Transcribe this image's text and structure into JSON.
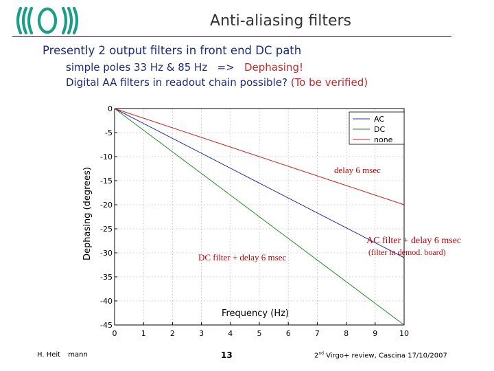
{
  "slide": {
    "title": "Anti-aliasing filters",
    "line1": "Presently 2 output filters in front end DC path",
    "line2_main": "simple poles 33 Hz & 85 Hz   =>   ",
    "line2_highlight": "Dephasing!",
    "line3_main": "Digital AA filters in readout chain possible? ",
    "line3_highlight": "(To be verified)",
    "footer_author_first": "H. Heit",
    "footer_author_last": "mann",
    "footer_page": "13",
    "footer_event_ordinal": "2",
    "footer_event_suffix": "nd",
    "footer_event_rest": " Virgo+ review, Cascina 17/10/2007"
  },
  "colors": {
    "logo": "#1a9e86",
    "title": "#333333",
    "rule": "#8a0f3a",
    "text": "#1a2a80",
    "highlight": "#c8262a",
    "series_ac": "#1f2fb0",
    "series_dc": "#1e8a1e",
    "series_none": "#d42020",
    "annotation": "#c00000"
  },
  "chart_data": {
    "type": "line",
    "xlabel": "Frequency (Hz)",
    "ylabel": "Dephasing (degrees)",
    "xlim": [
      0,
      10
    ],
    "ylim": [
      -45,
      0
    ],
    "xticks": [
      0,
      1,
      2,
      3,
      4,
      5,
      6,
      7,
      8,
      9,
      10
    ],
    "yticks": [
      0,
      -5,
      -10,
      -15,
      -20,
      -25,
      -30,
      -35,
      -40,
      -45
    ],
    "grid": true,
    "legend": "top-right",
    "series": [
      {
        "name": "AC",
        "x": [
          0,
          1,
          2,
          3,
          4,
          5,
          6,
          7,
          8,
          9,
          10
        ],
        "y": [
          0,
          -3.1,
          -6.2,
          -9.3,
          -12.4,
          -15.5,
          -18.6,
          -21.7,
          -24.8,
          -27.9,
          -31.0
        ]
      },
      {
        "name": "DC",
        "x": [
          0,
          1,
          2,
          3,
          4,
          5,
          6,
          7,
          8,
          9,
          10
        ],
        "y": [
          0,
          -4.5,
          -9.0,
          -13.5,
          -18.0,
          -22.5,
          -27.0,
          -31.5,
          -36.0,
          -40.5,
          -45.0
        ]
      },
      {
        "name": "none",
        "x": [
          0,
          1,
          2,
          3,
          4,
          5,
          6,
          7,
          8,
          9,
          10
        ],
        "y": [
          0,
          -2.0,
          -4.0,
          -6.0,
          -8.0,
          -10.0,
          -12.0,
          -14.0,
          -16.0,
          -18.0,
          -20.0
        ]
      }
    ],
    "annotations": [
      {
        "text": "delay 6 msec"
      },
      {
        "text": "AC filter + delay 6 msec"
      },
      {
        "text": "(filter in demod. board)"
      },
      {
        "text": "DC filter + delay 6 msec"
      }
    ]
  }
}
